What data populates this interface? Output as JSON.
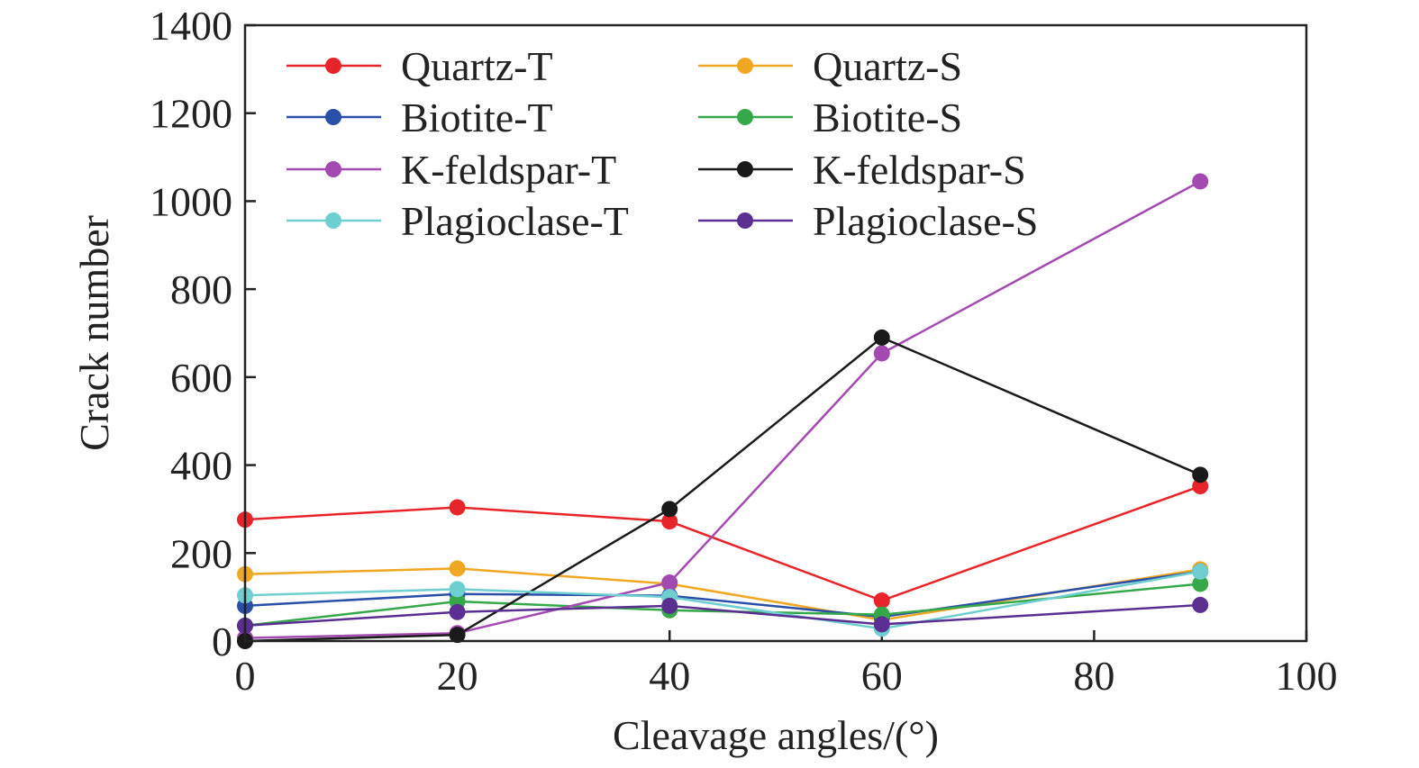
{
  "chart_data": {
    "type": "line",
    "xlabel": "Cleavage angles/(°)",
    "ylabel": "Crack number",
    "xlim": [
      0,
      100
    ],
    "ylim": [
      0,
      1400
    ],
    "xticks": [
      "0",
      "20",
      "40",
      "60",
      "80",
      "100"
    ],
    "yticks": [
      "0",
      "200",
      "400",
      "600",
      "800",
      "1000",
      "1200",
      "1400"
    ],
    "grid": false,
    "legend_position": "top-left",
    "x": [
      0,
      20,
      40,
      60,
      90
    ],
    "series": [
      {
        "name": "Quartz-T",
        "color": "#e8242b",
        "values": [
          276,
          304,
          272,
          92,
          352
        ]
      },
      {
        "name": "Quartz-S",
        "color": "#f0a823",
        "values": [
          152,
          165,
          130,
          48,
          163
        ]
      },
      {
        "name": "Biotite-T",
        "color": "#2a4fa8",
        "values": [
          80,
          107,
          103,
          55,
          158
        ]
      },
      {
        "name": "Biotite-S",
        "color": "#35a84a",
        "values": [
          35,
          90,
          70,
          60,
          130
        ]
      },
      {
        "name": "K-feldspar-T",
        "color": "#a24ab0",
        "values": [
          7,
          18,
          133,
          654,
          1045
        ]
      },
      {
        "name": "K-feldspar-S",
        "color": "#1a1a1a",
        "values": [
          0,
          14,
          300,
          690,
          378
        ]
      },
      {
        "name": "Plagioclase-T",
        "color": "#6fcfd0",
        "values": [
          104,
          118,
          100,
          28,
          158
        ]
      },
      {
        "name": "Plagioclase-S",
        "color": "#5b2e91",
        "values": [
          35,
          66,
          80,
          38,
          82
        ]
      }
    ]
  }
}
